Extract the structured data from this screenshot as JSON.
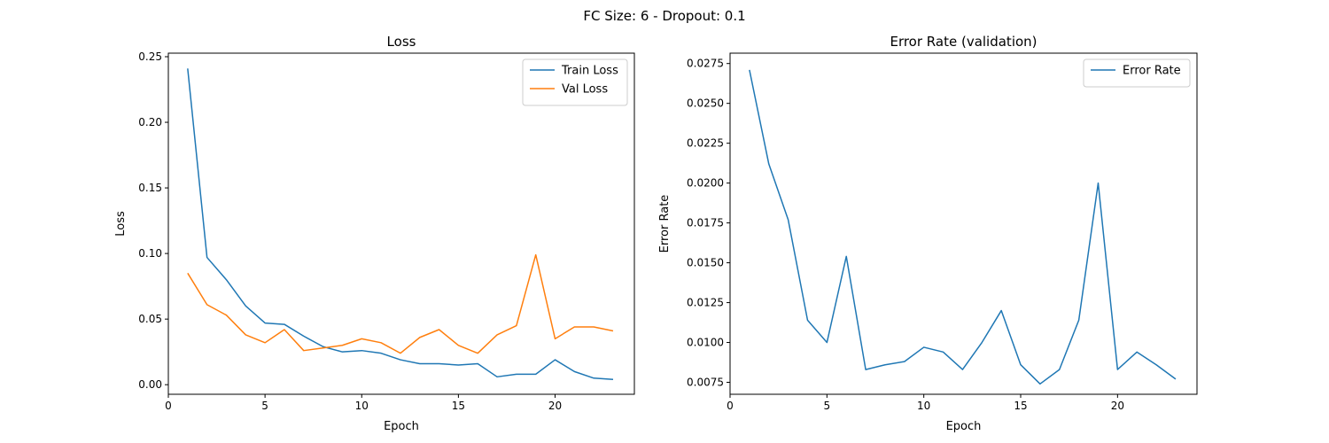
{
  "figure": {
    "suptitle": "FC Size: 6 - Dropout: 0.1"
  },
  "colors": {
    "train": "#1f77b4",
    "val": "#ff7f0e",
    "error": "#1f77b4"
  },
  "chart_data": [
    {
      "type": "line",
      "title": "Loss",
      "xlabel": "Epoch",
      "ylabel": "Loss",
      "xlim": [
        0,
        24.1
      ],
      "ylim": [
        -0.0073,
        0.2527
      ],
      "xticks": [
        0,
        5,
        10,
        15,
        20
      ],
      "xtick_labels": [
        "0",
        "5",
        "10",
        "15",
        "20"
      ],
      "yticks": [
        0.0,
        0.05,
        0.1,
        0.15,
        0.2,
        0.25
      ],
      "ytick_labels": [
        "0.00",
        "0.05",
        "0.10",
        "0.15",
        "0.20",
        "0.25"
      ],
      "legend_position": "top-right",
      "x": [
        1,
        2,
        3,
        4,
        5,
        6,
        7,
        8,
        9,
        10,
        11,
        12,
        13,
        14,
        15,
        16,
        17,
        18,
        19,
        20,
        21,
        22,
        23
      ],
      "series": [
        {
          "name": "Train Loss",
          "color": "#1f77b4",
          "values": [
            0.241,
            0.097,
            0.08,
            0.06,
            0.047,
            0.046,
            0.037,
            0.029,
            0.025,
            0.026,
            0.024,
            0.019,
            0.016,
            0.016,
            0.015,
            0.016,
            0.006,
            0.008,
            0.008,
            0.019,
            0.01,
            0.005,
            0.004
          ]
        },
        {
          "name": "Val Loss",
          "color": "#ff7f0e",
          "values": [
            0.085,
            0.061,
            0.053,
            0.038,
            0.032,
            0.042,
            0.026,
            0.028,
            0.03,
            0.035,
            0.032,
            0.024,
            0.036,
            0.042,
            0.03,
            0.024,
            0.038,
            0.045,
            0.099,
            0.035,
            0.044,
            0.044,
            0.041
          ]
        }
      ]
    },
    {
      "type": "line",
      "title": "Error Rate (validation)",
      "xlabel": "Epoch",
      "ylabel": "Error Rate",
      "xlim": [
        0,
        24.1
      ],
      "ylim": [
        0.00675,
        0.02815
      ],
      "xticks": [
        0,
        5,
        10,
        15,
        20
      ],
      "xtick_labels": [
        "0",
        "5",
        "10",
        "15",
        "20"
      ],
      "yticks": [
        0.0075,
        0.01,
        0.0125,
        0.015,
        0.0175,
        0.02,
        0.0225,
        0.025,
        0.0275
      ],
      "ytick_labels": [
        "0.0075",
        "0.0100",
        "0.0125",
        "0.0150",
        "0.0175",
        "0.0200",
        "0.0225",
        "0.0250",
        "0.0275"
      ],
      "legend_position": "top-right",
      "x": [
        1,
        2,
        3,
        4,
        5,
        6,
        7,
        8,
        9,
        10,
        11,
        12,
        13,
        14,
        15,
        16,
        17,
        18,
        19,
        20,
        21,
        22,
        23
      ],
      "series": [
        {
          "name": "Error Rate",
          "color": "#1f77b4",
          "values": [
            0.0271,
            0.0212,
            0.0177,
            0.0114,
            0.01,
            0.0154,
            0.0083,
            0.0086,
            0.0088,
            0.0097,
            0.0094,
            0.0083,
            0.01,
            0.012,
            0.0086,
            0.0074,
            0.0083,
            0.0114,
            0.02,
            0.0083,
            0.0094,
            0.0086,
            0.0077
          ]
        }
      ]
    }
  ]
}
